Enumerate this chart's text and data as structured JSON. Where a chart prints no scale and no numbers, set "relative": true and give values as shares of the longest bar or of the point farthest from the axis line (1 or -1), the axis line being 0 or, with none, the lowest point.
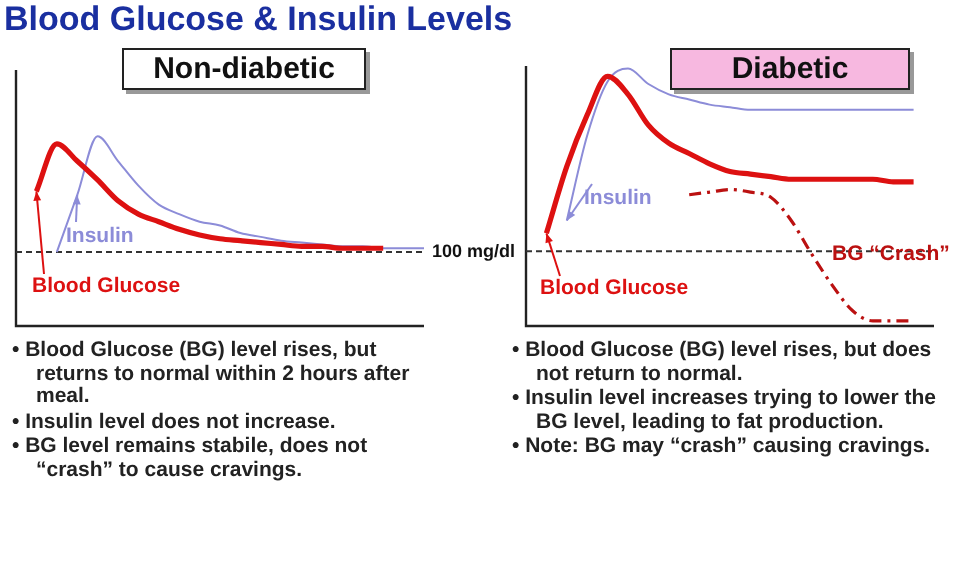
{
  "chart_data": [
    {
      "type": "line",
      "title": "Blood Glucose & Insulin Levels",
      "subtitle": "Non-diabetic",
      "relative": true,
      "marker": "none",
      "categories": [
        null,
        null,
        null,
        null,
        null,
        null,
        null,
        null,
        null,
        null,
        null,
        null,
        null,
        null,
        null,
        null,
        null,
        null,
        null,
        null,
        null
      ],
      "series": [
        {
          "name": "Blood Glucose",
          "color": "#dd1111",
          "values": [
            null,
            0.71,
            0.96,
            0.87,
            0.77,
            0.66,
            0.59,
            0.55,
            0.51,
            0.48,
            0.46,
            0.45,
            0.44,
            0.43,
            0.42,
            0.42,
            0.41,
            0.41,
            0.41,
            null,
            null
          ]
        },
        {
          "name": "Insulin",
          "color": "#8c8cd8",
          "values": [
            null,
            null,
            0.39,
            0.69,
            1,
            0.87,
            0.74,
            0.64,
            0.59,
            0.55,
            0.53,
            0.49,
            0.47,
            0.45,
            0.44,
            0.43,
            0.42,
            0.42,
            0.41,
            0.41,
            0.41
          ]
        }
      ],
      "ref_lines": [
        {
          "axis": "y",
          "value": 0.39,
          "label": "100 mg/dl",
          "line_style": "dashed"
        }
      ],
      "annotations": [
        "• Blood Glucose (BG) level rises, but returns to normal within 2 hours after meal.",
        "• Insulin level does not increase.",
        "• BG level remains stabile, does not “crash” to cause cravings."
      ]
    },
    {
      "type": "line",
      "title": "Diabetic",
      "relative": true,
      "marker": "none",
      "categories": [
        null,
        null,
        null,
        null,
        null,
        null,
        null,
        null,
        null,
        null,
        null,
        null,
        null,
        null,
        null,
        null,
        null,
        null,
        null,
        null,
        null
      ],
      "series": [
        {
          "name": "Blood Glucose",
          "color": "#dd1111",
          "values": [
            null,
            0.36,
            0.62,
            0.82,
            0.97,
            0.9,
            0.78,
            0.71,
            0.67,
            0.63,
            0.6,
            0.59,
            0.58,
            0.57,
            0.57,
            0.57,
            0.57,
            0.57,
            0.56,
            0.56,
            null
          ]
        },
        {
          "name": "Insulin",
          "color": "#8c8cd8",
          "values": [
            null,
            null,
            0.41,
            0.74,
            0.95,
            1,
            0.94,
            0.9,
            0.88,
            0.86,
            0.85,
            0.84,
            0.84,
            0.84,
            0.84,
            0.84,
            0.84,
            0.84,
            0.84,
            0.84,
            null
          ]
        },
        {
          "name": "BG “Crash”",
          "color": "#bb1111",
          "line_style": "dashed",
          "values": [
            null,
            null,
            null,
            null,
            null,
            null,
            null,
            null,
            0.51,
            0.52,
            0.53,
            0.52,
            0.5,
            0.41,
            0.28,
            0.16,
            0.06,
            0.02,
            0.02,
            0.02,
            null
          ]
        }
      ],
      "ref_lines": [
        {
          "axis": "y",
          "value": 0.29,
          "line_style": "dashed"
        }
      ],
      "annotations": [
        "• Blood Glucose (BG) level rises, but does not return to normal.",
        "• Insulin level increases trying to lower the BG level, leading to fat production.",
        "• Note: BG may “crash” causing cravings."
      ]
    }
  ]
}
